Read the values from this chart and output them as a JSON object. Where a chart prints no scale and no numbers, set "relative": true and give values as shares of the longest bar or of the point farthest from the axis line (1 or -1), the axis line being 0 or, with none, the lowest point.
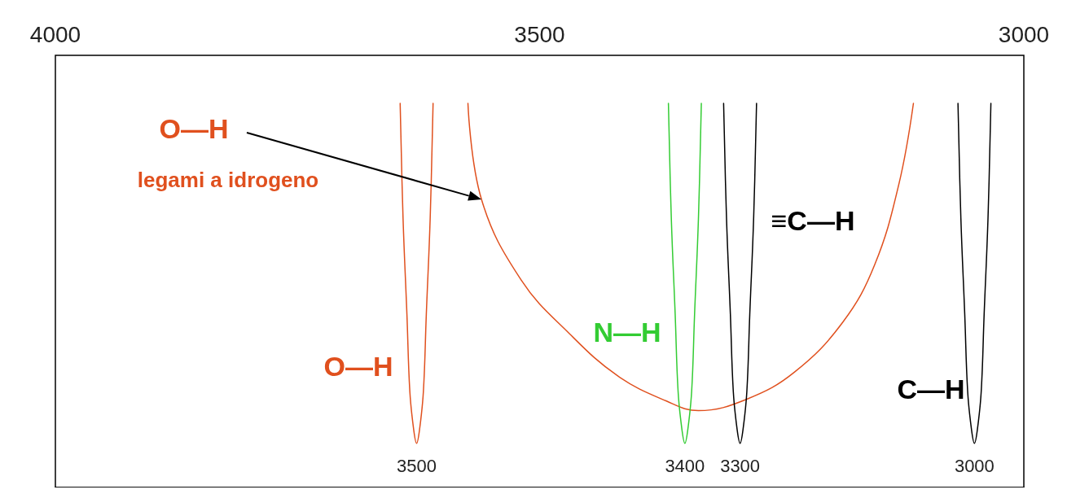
{
  "chart_data": {
    "type": "line",
    "relative": true,
    "xlim": [
      4000,
      3000
    ],
    "xticks": [
      4000,
      3500,
      3000
    ],
    "grid": false,
    "legend": false,
    "marker": "none",
    "line_style": "solid",
    "series": [
      {
        "name": "O—H",
        "color": "#e0501e",
        "x": [
          3644,
          3641,
          3637,
          3634,
          3630,
          3627,
          3624,
          3620,
          3617,
          3613,
          3610
        ],
        "values": [
          1,
          0.7,
          0.45,
          0.25,
          0.15,
          0.115,
          0.15,
          0.25,
          0.45,
          0.7,
          1
        ]
      },
      {
        "name": "O—H",
        "color": "#e0501e",
        "x": [
          3574,
          3560,
          3519,
          3469,
          3419,
          3369,
          3336,
          3286,
          3237,
          3187,
          3154,
          3129,
          3114
        ],
        "values": [
          1,
          0.75,
          0.54,
          0.4,
          0.29,
          0.225,
          0.2,
          0.23,
          0.3,
          0.43,
          0.58,
          0.79,
          1
        ]
      },
      {
        "name": "N—H",
        "color": "#33cc33",
        "x": [
          3367,
          3364,
          3360,
          3357,
          3353,
          3350,
          3347,
          3343,
          3340,
          3336,
          3333
        ],
        "values": [
          1,
          0.7,
          0.45,
          0.25,
          0.15,
          0.115,
          0.15,
          0.25,
          0.45,
          0.7,
          1
        ]
      },
      {
        "name": "≡C—H",
        "color": "#000000",
        "x": [
          3310,
          3307,
          3303,
          3300,
          3296,
          3293,
          3290,
          3286,
          3283,
          3279,
          3276
        ],
        "values": [
          1,
          0.7,
          0.45,
          0.25,
          0.15,
          0.115,
          0.15,
          0.25,
          0.45,
          0.7,
          1
        ]
      },
      {
        "name": "C—H",
        "color": "#000000",
        "x": [
          3068,
          3065,
          3061,
          3058,
          3054,
          3051,
          3048,
          3044,
          3041,
          3037,
          3034
        ],
        "values": [
          1,
          0.7,
          0.45,
          0.25,
          0.15,
          0.115,
          0.15,
          0.25,
          0.45,
          0.7,
          1
        ]
      }
    ],
    "annotations": [
      "legami a idrogeno",
      {
        "text": "3500",
        "x": 3627,
        "y": 0.115
      },
      {
        "text": "3400",
        "x": 3350,
        "y": 0.115
      },
      {
        "text": "3300",
        "x": 3293,
        "y": 0.115
      },
      {
        "text": "3000",
        "x": 3051,
        "y": 0.115
      }
    ]
  }
}
